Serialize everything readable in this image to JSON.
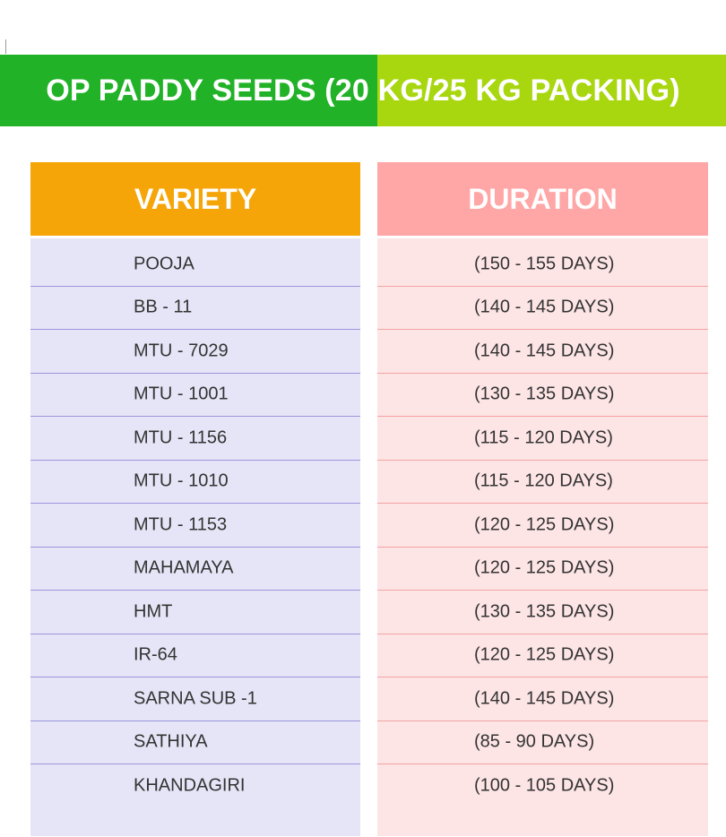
{
  "banner": {
    "title": "OP PADDY SEEDS (20 KG/25 KG PACKING)"
  },
  "table": {
    "variety_header": "VARIETY",
    "duration_header": "DURATION",
    "rows": [
      {
        "variety": "POOJA",
        "duration": "(150 - 155 DAYS)"
      },
      {
        "variety": "BB - 11",
        "duration": "(140 - 145 DAYS)"
      },
      {
        "variety": "MTU - 7029",
        "duration": "(140 - 145 DAYS)"
      },
      {
        "variety": "MTU - 1001",
        "duration": "(130 - 135 DAYS)"
      },
      {
        "variety": "MTU - 1156",
        "duration": "(115 - 120 DAYS)"
      },
      {
        "variety": "MTU - 1010",
        "duration": "(115 - 120 DAYS)"
      },
      {
        "variety": "MTU - 1153",
        "duration": "(120 - 125 DAYS)"
      },
      {
        "variety": "MAHAMAYA",
        "duration": "(120 - 125 DAYS)"
      },
      {
        "variety": "HMT",
        "duration": "(130 - 135 DAYS)"
      },
      {
        "variety": "IR-64",
        "duration": "(120 - 125 DAYS)"
      },
      {
        "variety": "SARNA SUB -1",
        "duration": "(140 - 145 DAYS)"
      },
      {
        "variety": "SATHIYA",
        "duration": "(85 - 90 DAYS)"
      },
      {
        "variety": "KHANDAGIRI",
        "duration": "(100 - 105 DAYS)"
      }
    ]
  },
  "colors": {
    "banner_left": "#21b227",
    "banner_right": "#a8d60f",
    "variety_header_bg": "#f5a508",
    "duration_header_bg": "#ffa6a6",
    "variety_body_bg": "#e6e5f7",
    "duration_body_bg": "#fde4e5"
  }
}
